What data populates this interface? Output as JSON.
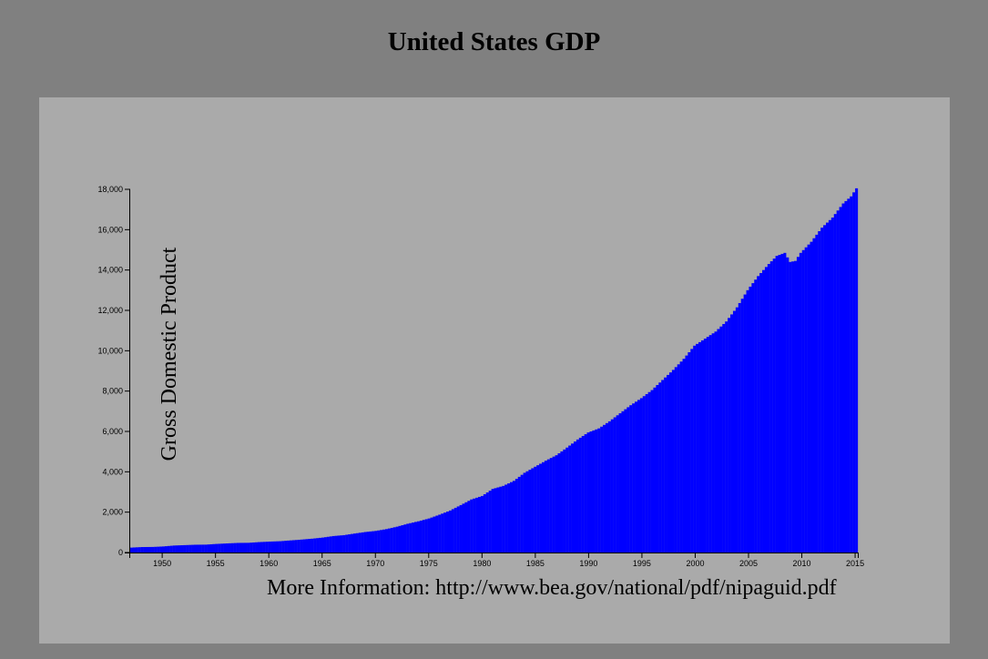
{
  "page": {
    "background_color": "#808080",
    "panel_color": "#aaaaaa"
  },
  "footer": {
    "more_info": "More Information: http://www.bea.gov/national/pdf/nipaguid.pdf"
  },
  "chart_data": {
    "type": "bar",
    "title": "United States GDP",
    "xlabel": "",
    "ylabel": "Gross Domestic Product",
    "bar_color": "#0000ff",
    "grid": false,
    "legend": "none",
    "x_interval": "quarterly",
    "x_range": [
      1947.0,
      2015.25
    ],
    "ylim": [
      0,
      18000
    ],
    "x_ticks": [
      1950,
      1955,
      1960,
      1965,
      1970,
      1975,
      1980,
      1985,
      1990,
      1995,
      2000,
      2005,
      2010,
      2015
    ],
    "y_ticks": [
      0,
      2000,
      4000,
      6000,
      8000,
      10000,
      12000,
      14000,
      16000,
      18000
    ],
    "y_tick_labels": [
      "0",
      "2,000",
      "4,000",
      "6,000",
      "8,000",
      "10,000",
      "12,000",
      "14,000",
      "16,000",
      "18,000"
    ],
    "x_tick_labels": [
      "1950",
      "1955",
      "1960",
      "1965",
      "1970",
      "1975",
      "1980",
      "1985",
      "1990",
      "1995",
      "2000",
      "2005",
      "2010",
      "2015"
    ],
    "series": [
      {
        "x": [
          1947.0,
          1948.0,
          1949.0,
          1950.0,
          1951.0,
          1952.0,
          1953.0,
          1954.0,
          1955.0,
          1956.0,
          1957.0,
          1958.0,
          1959.0,
          1960.0,
          1961.0,
          1962.0,
          1963.0,
          1964.0,
          1965.0,
          1966.0,
          1967.0,
          1968.0,
          1969.0,
          1970.0,
          1971.0,
          1972.0,
          1973.0,
          1974.0,
          1975.0,
          1976.0,
          1977.0,
          1978.0,
          1979.0,
          1980.0,
          1981.0,
          1982.0,
          1983.0,
          1984.0,
          1985.0,
          1986.0,
          1987.0,
          1988.0,
          1989.0,
          1990.0,
          1991.0,
          1992.0,
          1993.0,
          1994.0,
          1995.0,
          1996.0,
          1997.0,
          1998.0,
          1999.0,
          2000.0,
          2001.0,
          2002.0,
          2003.0,
          2004.0,
          2005.0,
          2006.0,
          2007.0,
          2007.75,
          2008.5,
          2009.0,
          2009.5,
          2010.0,
          2011.0,
          2012.0,
          2013.0,
          2014.0,
          2014.75,
          2015.25
        ],
        "values": [
          243,
          270,
          275,
          300,
          345,
          365,
          385,
          390,
          425,
          450,
          475,
          480,
          515,
          540,
          560,
          600,
          640,
          685,
          740,
          815,
          860,
          940,
          1015,
          1070,
          1160,
          1280,
          1425,
          1545,
          1685,
          1875,
          2080,
          2350,
          2630,
          2800,
          3150,
          3300,
          3550,
          3950,
          4250,
          4550,
          4820,
          5200,
          5600,
          5950,
          6150,
          6500,
          6900,
          7300,
          7650,
          8050,
          8550,
          9050,
          9600,
          10250,
          10600,
          10950,
          11450,
          12150,
          13000,
          13700,
          14300,
          14700,
          14850,
          14400,
          14450,
          14850,
          15400,
          16100,
          16600,
          17300,
          17650,
          18050
        ]
      }
    ]
  }
}
